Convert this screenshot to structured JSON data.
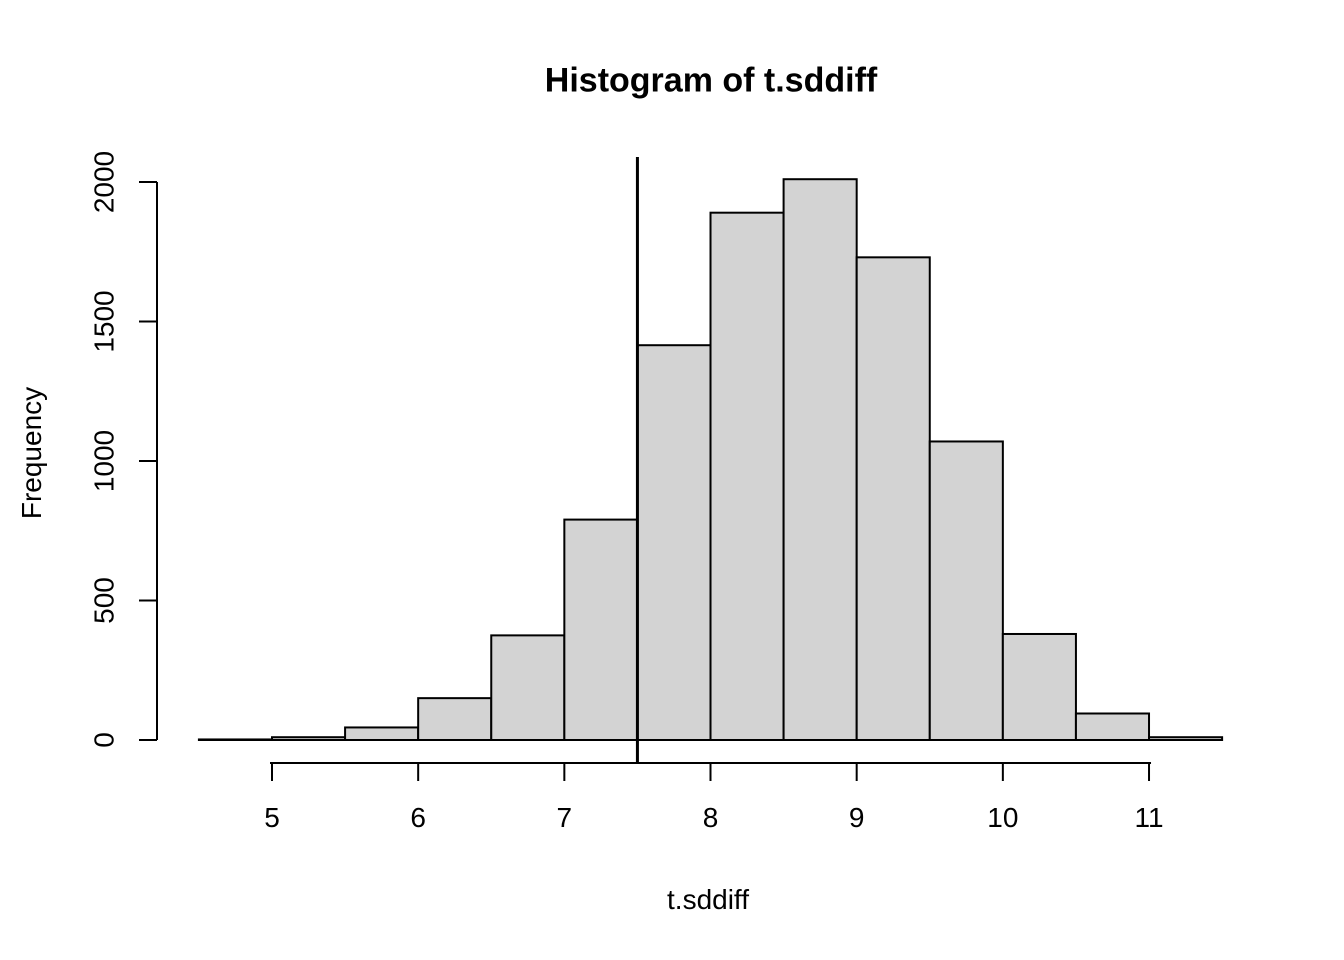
{
  "chart_data": {
    "type": "bar",
    "subtype": "histogram",
    "title": "Histogram of t.sddiff",
    "xlabel": "t.sddiff",
    "ylabel": "Frequency",
    "bin_edges": [
      4.5,
      5.0,
      5.5,
      6.0,
      6.5,
      7.0,
      7.5,
      8.0,
      8.5,
      9.0,
      9.5,
      10.0,
      10.5,
      11.0,
      11.5
    ],
    "counts": [
      2,
      10,
      45,
      150,
      375,
      790,
      1415,
      1890,
      2010,
      1730,
      1070,
      380,
      95,
      10
    ],
    "x_ticks": [
      5,
      6,
      7,
      8,
      9,
      10,
      11
    ],
    "y_ticks": [
      0,
      500,
      1000,
      1500,
      2000
    ],
    "xlim": [
      4.5,
      11.5
    ],
    "ylim": [
      0,
      2013
    ],
    "vline_x": 7.5,
    "grid": "off",
    "legend": "none",
    "bar_fill": "#d3d3d3",
    "bar_stroke": "#000000",
    "axis_color": "#000000",
    "background": "#ffffff"
  }
}
